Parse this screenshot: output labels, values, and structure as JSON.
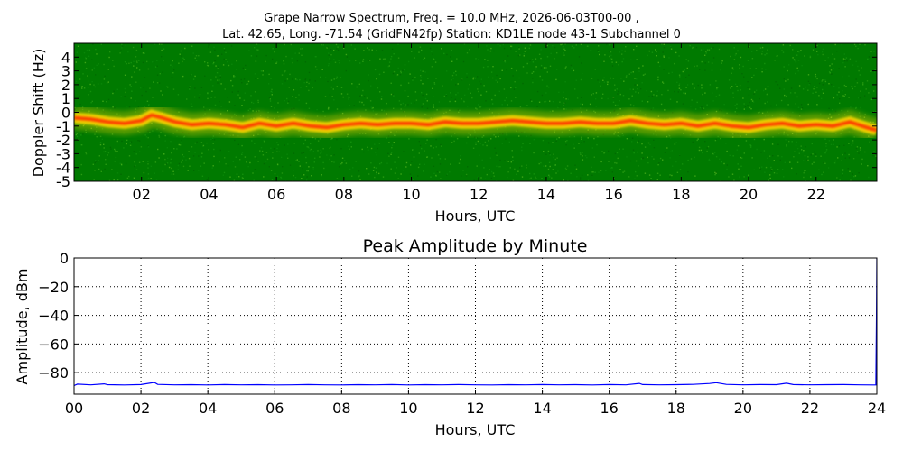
{
  "header": {
    "title_line1": "Grape Narrow Spectrum, Freq. = 10.0 MHz, 2026-06-03T00-00 ,",
    "title_line2": "Lat.  42.65, Long. -71.54 (GridFN42fp) Station: KD1LE node 43-1 Subchannel 0"
  },
  "colors": {
    "spectrogram_background": "#007a00",
    "spectrogram_signal_core": "#ff3300",
    "spectrogram_signal_halo": "#ffd800",
    "amplitude_line": "#0000ff",
    "grid": "#000000"
  },
  "chart_data": [
    {
      "type": "heatmap",
      "title": "",
      "xlabel": "Hours, UTC",
      "ylabel": "Doppler Shift (Hz)",
      "xlim": [
        0,
        23.8
      ],
      "ylim": [
        -5,
        5
      ],
      "x_ticks": [
        2,
        4,
        6,
        8,
        10,
        12,
        14,
        16,
        18,
        20,
        22
      ],
      "x_tick_labels": [
        "02",
        "04",
        "06",
        "08",
        "10",
        "12",
        "14",
        "16",
        "18",
        "20",
        "22"
      ],
      "y_ticks": [
        4,
        3,
        2,
        1,
        0,
        -1,
        -2,
        -3,
        -4,
        -5
      ],
      "y_tick_labels": [
        "4",
        "3",
        "2",
        "1",
        "0",
        "-1",
        "-2",
        "-3",
        "-4",
        "-5"
      ],
      "grid": false,
      "signal_trace": {
        "hours": [
          0,
          0.5,
          1,
          1.5,
          2,
          2.3,
          2.6,
          3,
          3.5,
          4,
          4.5,
          5,
          5.5,
          6,
          6.5,
          7,
          7.5,
          8,
          8.5,
          9,
          9.5,
          10,
          10.5,
          11,
          11.5,
          12,
          12.5,
          13,
          13.5,
          14,
          14.5,
          15,
          15.5,
          16,
          16.5,
          17,
          17.5,
          18,
          18.5,
          19,
          19.5,
          20,
          20.5,
          21,
          21.5,
          22,
          22.5,
          23,
          23.5,
          23.8
        ],
        "doppler_hz": [
          -0.4,
          -0.5,
          -0.7,
          -0.8,
          -0.6,
          -0.2,
          -0.4,
          -0.7,
          -0.9,
          -0.8,
          -0.9,
          -1.1,
          -0.8,
          -1.0,
          -0.8,
          -1.0,
          -1.1,
          -0.9,
          -0.8,
          -0.9,
          -0.8,
          -0.8,
          -0.9,
          -0.7,
          -0.8,
          -0.8,
          -0.7,
          -0.6,
          -0.7,
          -0.8,
          -0.8,
          -0.7,
          -0.8,
          -0.8,
          -0.6,
          -0.8,
          -0.9,
          -0.8,
          -1.0,
          -0.8,
          -1.0,
          -1.1,
          -0.9,
          -0.8,
          -1.0,
          -0.9,
          -1.0,
          -0.7,
          -1.1,
          -1.3
        ]
      }
    },
    {
      "type": "line",
      "title": "Peak Amplitude by Minute",
      "xlabel": "Hours, UTC",
      "ylabel": "Amplitude, dBm",
      "xlim": [
        0,
        24
      ],
      "ylim": [
        -95,
        0
      ],
      "x_ticks": [
        0,
        2,
        4,
        6,
        8,
        10,
        12,
        14,
        16,
        18,
        20,
        22,
        24
      ],
      "x_tick_labels": [
        "00",
        "02",
        "04",
        "06",
        "08",
        "10",
        "12",
        "14",
        "16",
        "18",
        "20",
        "22",
        "24"
      ],
      "y_ticks": [
        0,
        -20,
        -40,
        -60,
        -80
      ],
      "y_tick_labels": [
        "0",
        "−20",
        "−40",
        "−60",
        "−80"
      ],
      "grid": true,
      "series": [
        {
          "x": [
            0,
            0.1,
            0.5,
            0.9,
            1.0,
            1.5,
            2.0,
            2.4,
            2.5,
            3.0,
            3.5,
            4.0,
            4.5,
            5.0,
            5.5,
            6.0,
            6.5,
            7.0,
            7.5,
            8.0,
            8.5,
            9.0,
            9.5,
            10.0,
            10.5,
            11.0,
            11.5,
            12.0,
            12.5,
            13.0,
            13.5,
            14.0,
            14.5,
            15.0,
            15.5,
            16.0,
            16.5,
            16.9,
            17.0,
            17.5,
            18.0,
            18.5,
            19.0,
            19.2,
            19.5,
            20.0,
            20.5,
            21.0,
            21.3,
            21.5,
            22.0,
            22.5,
            23.0,
            23.5,
            23.9,
            23.97,
            23.99,
            24.0
          ],
          "y": [
            -89,
            -88,
            -88.5,
            -87.8,
            -88.4,
            -88.6,
            -88.3,
            -86.8,
            -88.2,
            -88.5,
            -88.4,
            -88.6,
            -88.3,
            -88.5,
            -88.4,
            -88.6,
            -88.5,
            -88.3,
            -88.5,
            -88.6,
            -88.4,
            -88.5,
            -88.3,
            -88.6,
            -88.4,
            -88.5,
            -88.3,
            -88.5,
            -88.6,
            -88.4,
            -88.5,
            -88.3,
            -88.5,
            -88.4,
            -88.6,
            -88.3,
            -88.5,
            -87.5,
            -88.3,
            -88.5,
            -88.4,
            -88.2,
            -87.6,
            -87.0,
            -88.2,
            -88.5,
            -88.3,
            -88.4,
            -87.4,
            -88.3,
            -88.5,
            -88.4,
            -88.3,
            -88.5,
            -88.6,
            -88.6,
            -40,
            0
          ]
        }
      ]
    }
  ]
}
